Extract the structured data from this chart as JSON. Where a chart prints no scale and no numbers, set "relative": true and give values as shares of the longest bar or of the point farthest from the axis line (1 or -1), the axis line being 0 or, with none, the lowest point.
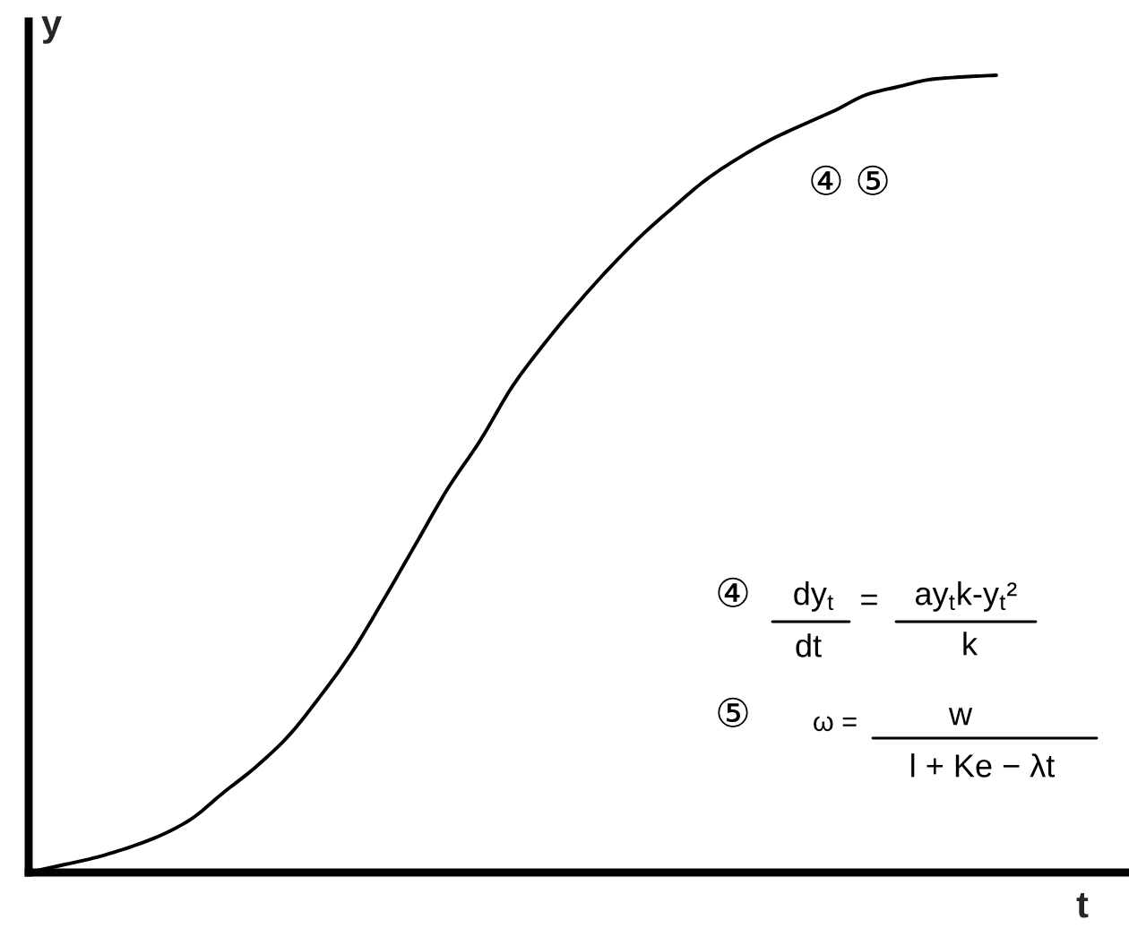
{
  "chart_data": {
    "type": "line",
    "relative": true,
    "xlabel": "t",
    "ylabel": "y",
    "categories": [
      null,
      null,
      null,
      null,
      null,
      null,
      null,
      null,
      null,
      null,
      null,
      null,
      null,
      null,
      null,
      null,
      null,
      null,
      null,
      null,
      null,
      null,
      null,
      null,
      null,
      null,
      null,
      null,
      null,
      null,
      null
    ],
    "series": [
      {
        "color": "#000000",
        "values": [
          0,
          0.009,
          0.018,
          0.03,
          0.045,
          0.066,
          0.099,
          0.131,
          0.169,
          0.219,
          0.275,
          0.342,
          0.412,
          0.482,
          0.542,
          0.61,
          0.664,
          0.713,
          0.758,
          0.799,
          0.835,
          0.869,
          0.896,
          0.919,
          0.938,
          0.956,
          0.976,
          0.986,
          0.995,
          0.998,
          1
        ]
      }
    ],
    "annotations": [
      "④ ⑤",
      "④",
      "dy$_{t}$",
      "dt",
      "=",
      "ay$_{t}$k-y$_{t}$²",
      "k",
      "⑤",
      "ω =",
      "w",
      "l + Ke − λt"
    ],
    "line_style": "solid"
  }
}
